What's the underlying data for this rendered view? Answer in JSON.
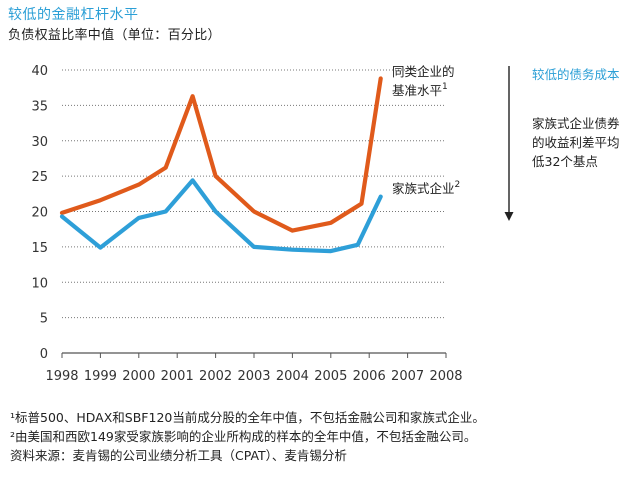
{
  "header": {
    "title": "较低的金融杠杆水平",
    "subtitle": "负债权益比率中值（单位：百分比）"
  },
  "chart_data": {
    "type": "line",
    "title": "较低的金融杠杆水平",
    "ylabel": "负债权益比率中值（单位：百分比）",
    "xlabel": "",
    "ylim": [
      0,
      40
    ],
    "yticks": [
      0,
      5,
      10,
      15,
      20,
      25,
      30,
      35,
      40
    ],
    "xlim": [
      1998,
      2008
    ],
    "categories": [
      "1998",
      "1999",
      "2000",
      "2001",
      "2002",
      "2003",
      "2004",
      "2005",
      "2006",
      "2007",
      "2008"
    ],
    "grid": true,
    "series": [
      {
        "name": "同类企业的基准水平",
        "label_lines": [
          "同类企业的",
          "基准水平"
        ],
        "superscript": "1",
        "color": "#e05a1b",
        "x": [
          1998,
          1999,
          2000,
          2000.7,
          2001.4,
          2002,
          2003,
          2004,
          2005,
          2005.8,
          2006.3
        ],
        "values": [
          19.8,
          21.6,
          23.8,
          26.2,
          36.3,
          25,
          20,
          17.3,
          18.4,
          21.1,
          38.8
        ]
      },
      {
        "name": "家族式企业",
        "label_lines": [
          "家族式企业"
        ],
        "superscript": "2",
        "color": "#2e9fd8",
        "x": [
          1998,
          1999,
          2000,
          2000.7,
          2001.4,
          2002,
          2003,
          2004,
          2005,
          2005.7,
          2006.3
        ],
        "values": [
          19.3,
          14.9,
          19.1,
          20,
          24.4,
          20,
          15,
          14.6,
          14.4,
          15.3,
          22.1
        ]
      }
    ],
    "annotation": {
      "title": "较低的债务成本",
      "text_lines": [
        "家族式企业债券",
        "的收益利差平均",
        "低32个基点"
      ],
      "arrow_color": "#222222"
    }
  },
  "footnotes": [
    "¹标普500、HDAX和SBF120当前成分股的全年中值，不包括金融公司和家族式企业。",
    "²由美国和西欧149家受家族影响的企业所构成的样本的全年中值，不包括金融公司。",
    "资料来源：麦肯锡的公司业绩分析工具（CPAT）、麦肯锡分析"
  ]
}
